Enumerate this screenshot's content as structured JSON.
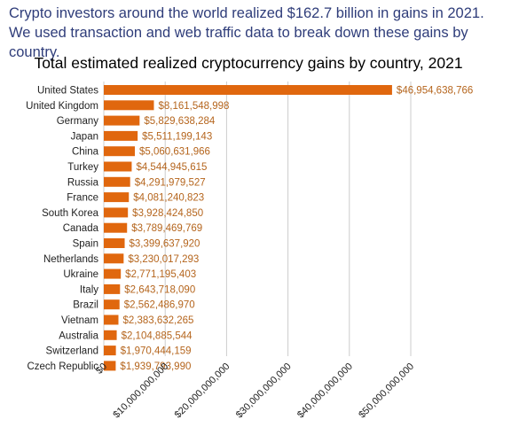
{
  "intro_text": "Crypto investors around the world realized $162.7 billion in gains in 2021. We used transaction and web traffic data to break down these gains by country.",
  "chart_data": {
    "type": "bar",
    "orientation": "horizontal",
    "title": "Total estimated realized cryptocurrency gains by country, 2021",
    "xlabel": "",
    "ylabel": "",
    "xlim": [
      0,
      50000000000
    ],
    "grid": true,
    "bar_color": "#e0670e",
    "label_color": "#b5651d",
    "categories": [
      "United States",
      "United Kingdom",
      "Germany",
      "Japan",
      "China",
      "Turkey",
      "Russia",
      "France",
      "South Korea",
      "Canada",
      "Spain",
      "Netherlands",
      "Ukraine",
      "Italy",
      "Brazil",
      "Vietnam",
      "Australia",
      "Switzerland",
      "Czech Republic"
    ],
    "values": [
      46954638766,
      8161548998,
      5829638284,
      5511199143,
      5060631966,
      4544945615,
      4291979527,
      4081240823,
      3928424850,
      3789469769,
      3399637920,
      3230017293,
      2771195403,
      2643718090,
      2562486970,
      2383632265,
      2104885544,
      1970444159,
      1939793990
    ],
    "value_labels": [
      "$46,954,638,766",
      "$8,161,548,998",
      "$5,829,638,284",
      "$5,511,199,143",
      "$5,060,631,966",
      "$4,544,945,615",
      "$4,291,979,527",
      "$4,081,240,823",
      "$3,928,424,850",
      "$3,789,469,769",
      "$3,399,637,920",
      "$3,230,017,293",
      "$2,771,195,403",
      "$2,643,718,090",
      "$2,562,486,970",
      "$2,383,632,265",
      "$2,104,885,544",
      "$1,970,444,159",
      "$1,939,793,990"
    ],
    "ticks": [
      0,
      10000000000,
      20000000000,
      30000000000,
      40000000000,
      50000000000
    ],
    "tick_labels": [
      "$0",
      "$10,000,000,000",
      "$20,000,000,000",
      "$30,000,000,000",
      "$40,000,000,000",
      "$50,000,000,000"
    ]
  }
}
